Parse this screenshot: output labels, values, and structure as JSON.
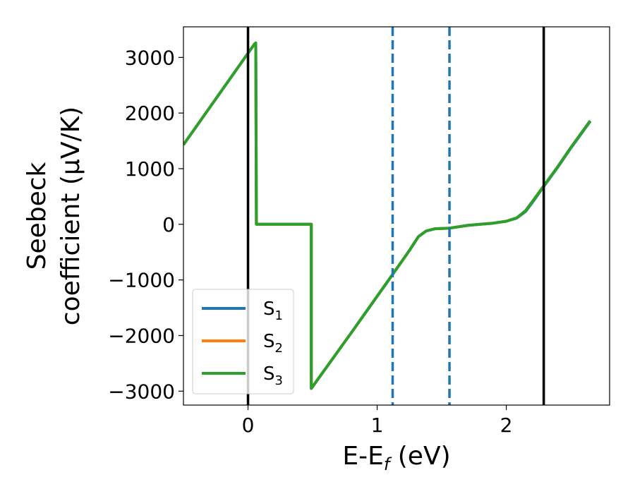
{
  "chart_data": {
    "type": "line",
    "xlabel": "E-E_f (eV)",
    "ylabel_line1": "Seebeck",
    "ylabel_line2": "coefficient  (μV/K)",
    "xlim": [
      -0.5,
      2.8
    ],
    "ylim": [
      -3250,
      3550
    ],
    "x_ticks": [
      0,
      1,
      2
    ],
    "y_ticks": [
      -3000,
      -2000,
      -1000,
      0,
      1000,
      2000,
      3000
    ],
    "x_tick_labels": [
      "0",
      "1",
      "2"
    ],
    "y_tick_labels": [
      "−3000",
      "−2000",
      "−1000",
      "0",
      "1000",
      "2000",
      "3000"
    ],
    "grid": false,
    "legend_position": "lower-left",
    "vertical_lines": [
      {
        "x": 0.0,
        "style": "solid",
        "color": "#000000"
      },
      {
        "x": 1.12,
        "style": "dashed",
        "color": "#1f77b4"
      },
      {
        "x": 1.56,
        "style": "dashed",
        "color": "#1f77b4"
      },
      {
        "x": 2.29,
        "style": "solid",
        "color": "#000000"
      }
    ],
    "series": [
      {
        "name": "S_1",
        "legend_main": "S",
        "legend_sub": "1",
        "color": "#1f77b4",
        "points": [
          [
            -0.5,
            1430
          ],
          [
            0.05,
            3240
          ],
          [
            0.06,
            3260
          ],
          [
            0.065,
            0
          ],
          [
            0.49,
            0
          ],
          [
            0.49,
            -2950
          ],
          [
            0.8,
            -1950
          ],
          [
            1.12,
            -900
          ],
          [
            1.25,
            -470
          ],
          [
            1.32,
            -220
          ],
          [
            1.38,
            -120
          ],
          [
            1.45,
            -80
          ],
          [
            1.56,
            -70
          ],
          [
            1.7,
            -20
          ],
          [
            1.8,
            0
          ],
          [
            1.9,
            20
          ],
          [
            2.0,
            55
          ],
          [
            2.08,
            110
          ],
          [
            2.15,
            230
          ],
          [
            2.22,
            450
          ],
          [
            2.29,
            680
          ],
          [
            2.4,
            1030
          ],
          [
            2.5,
            1370
          ],
          [
            2.65,
            1850
          ]
        ]
      },
      {
        "name": "S_2",
        "legend_main": "S",
        "legend_sub": "2",
        "color": "#ff7f0e",
        "points": [
          [
            -0.5,
            1430
          ],
          [
            0.05,
            3240
          ],
          [
            0.06,
            3260
          ],
          [
            0.065,
            0
          ],
          [
            0.49,
            0
          ],
          [
            0.49,
            -2950
          ],
          [
            0.8,
            -1950
          ],
          [
            1.12,
            -900
          ],
          [
            1.25,
            -470
          ],
          [
            1.32,
            -220
          ],
          [
            1.38,
            -120
          ],
          [
            1.45,
            -80
          ],
          [
            1.56,
            -70
          ],
          [
            1.7,
            -20
          ],
          [
            1.8,
            0
          ],
          [
            1.9,
            20
          ],
          [
            2.0,
            55
          ],
          [
            2.08,
            115
          ],
          [
            2.15,
            245
          ],
          [
            2.22,
            465
          ],
          [
            2.29,
            690
          ],
          [
            2.4,
            1040
          ],
          [
            2.5,
            1380
          ],
          [
            2.65,
            1860
          ]
        ]
      },
      {
        "name": "S_3",
        "legend_main": "S",
        "legend_sub": "3",
        "color": "#2ca02c",
        "points": [
          [
            -0.5,
            1430
          ],
          [
            0.05,
            3240
          ],
          [
            0.06,
            3260
          ],
          [
            0.065,
            0
          ],
          [
            0.49,
            0
          ],
          [
            0.49,
            -2950
          ],
          [
            0.8,
            -1950
          ],
          [
            1.12,
            -900
          ],
          [
            1.25,
            -470
          ],
          [
            1.32,
            -220
          ],
          [
            1.38,
            -120
          ],
          [
            1.45,
            -80
          ],
          [
            1.56,
            -70
          ],
          [
            1.7,
            -20
          ],
          [
            1.8,
            0
          ],
          [
            1.9,
            20
          ],
          [
            2.0,
            55
          ],
          [
            2.08,
            115
          ],
          [
            2.15,
            245
          ],
          [
            2.22,
            465
          ],
          [
            2.29,
            690
          ],
          [
            2.4,
            1040
          ],
          [
            2.5,
            1380
          ],
          [
            2.65,
            1860
          ]
        ]
      }
    ]
  }
}
